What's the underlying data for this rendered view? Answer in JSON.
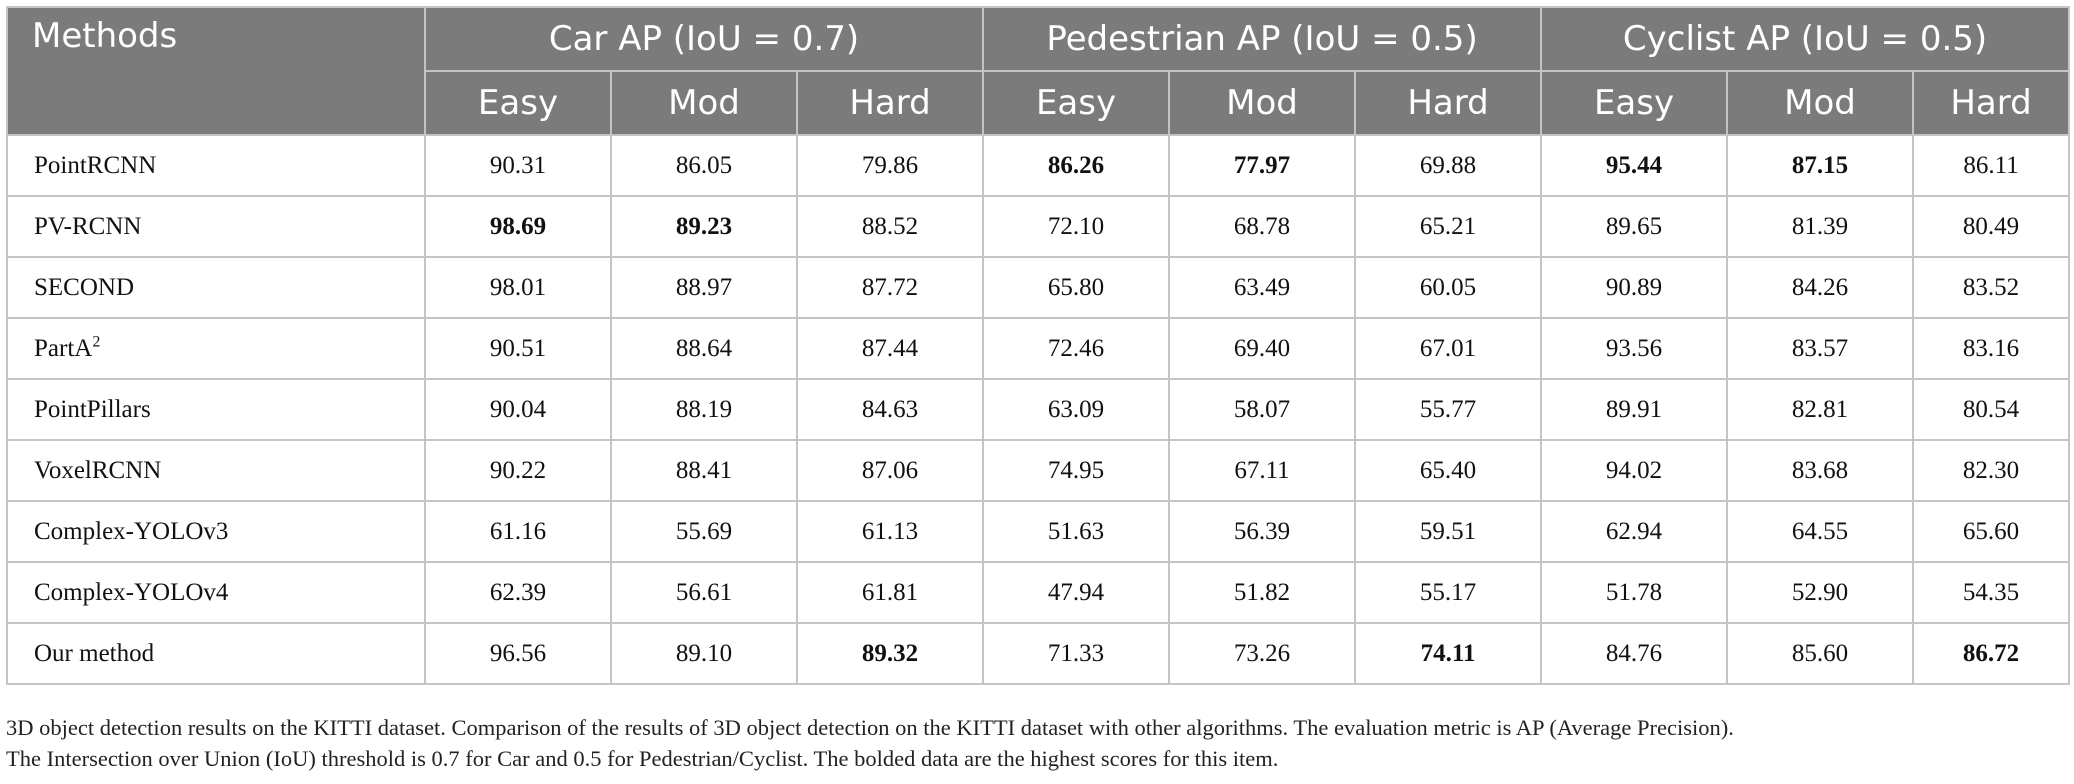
{
  "table": {
    "methods_header": "Methods",
    "groups": [
      "Car AP (IoU = 0.7)",
      "Pedestrian AP (IoU = 0.5)",
      "Cyclist AP (IoU = 0.5)"
    ],
    "subheaders": [
      "Easy",
      "Mod",
      "Hard",
      "Easy",
      "Mod",
      "Hard",
      "Easy",
      "Mod",
      "Hard"
    ],
    "rows": [
      {
        "method": "PointRCNN",
        "sup": "",
        "values": [
          "90.31",
          "86.05",
          "79.86",
          "86.26",
          "77.97",
          "69.88",
          "95.44",
          "87.15",
          "86.11"
        ],
        "bold": [
          3,
          4,
          6,
          7
        ]
      },
      {
        "method": "PV-RCNN",
        "sup": "",
        "values": [
          "98.69",
          "89.23",
          "88.52",
          "72.10",
          "68.78",
          "65.21",
          "89.65",
          "81.39",
          "80.49"
        ],
        "bold": [
          0,
          1
        ]
      },
      {
        "method": "SECOND",
        "sup": "",
        "values": [
          "98.01",
          "88.97",
          "87.72",
          "65.80",
          "63.49",
          "60.05",
          "90.89",
          "84.26",
          "83.52"
        ],
        "bold": []
      },
      {
        "method": "PartA",
        "sup": "2",
        "values": [
          "90.51",
          "88.64",
          "87.44",
          "72.46",
          "69.40",
          "67.01",
          "93.56",
          "83.57",
          "83.16"
        ],
        "bold": []
      },
      {
        "method": "PointPillars",
        "sup": "",
        "values": [
          "90.04",
          "88.19",
          "84.63",
          "63.09",
          "58.07",
          "55.77",
          "89.91",
          "82.81",
          "80.54"
        ],
        "bold": []
      },
      {
        "method": "VoxelRCNN",
        "sup": "",
        "values": [
          "90.22",
          "88.41",
          "87.06",
          "74.95",
          "67.11",
          "65.40",
          "94.02",
          "83.68",
          "82.30"
        ],
        "bold": []
      },
      {
        "method": "Complex-YOLOv3",
        "sup": "",
        "values": [
          "61.16",
          "55.69",
          "61.13",
          "51.63",
          "56.39",
          "59.51",
          "62.94",
          "64.55",
          "65.60"
        ],
        "bold": []
      },
      {
        "method": "Complex-YOLOv4",
        "sup": "",
        "values": [
          "62.39",
          "56.61",
          "61.81",
          "47.94",
          "51.82",
          "55.17",
          "51.78",
          "52.90",
          "54.35"
        ],
        "bold": []
      },
      {
        "method": "Our method",
        "sup": "",
        "values": [
          "96.56",
          "89.10",
          "89.32",
          "71.33",
          "73.26",
          "74.11",
          "84.76",
          "85.60",
          "86.72"
        ],
        "bold": [
          2,
          5,
          8
        ]
      }
    ]
  },
  "caption": {
    "line1": "3D object detection results on the KITTI dataset. Comparison of the results of 3D object detection on the KITTI dataset with other algorithms. The evaluation metric is AP (Average Precision).",
    "line2": "The Intersection over Union (IoU) threshold is 0.7 for Car and 0.5 for Pedestrian/Cyclist. The bolded data are the highest scores for this item."
  },
  "colors": {
    "header_bg": "#7b7b7b",
    "header_text": "#ffffff",
    "grid": "#c4c4c4"
  }
}
